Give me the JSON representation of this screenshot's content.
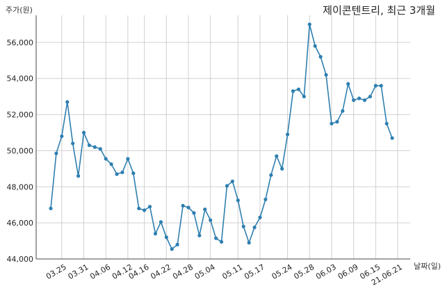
{
  "chart_data": {
    "type": "line",
    "title": "제이콘텐트리, 최근 3개월",
    "ylabel": "주가(원)",
    "xlabel": "날짜(일)",
    "ylim": [
      44000,
      57500
    ],
    "yticks": [
      44000,
      46000,
      48000,
      50000,
      52000,
      54000,
      56000
    ],
    "ytick_labels": [
      "44,000",
      "46,000",
      "48,000",
      "50,000",
      "52,000",
      "54,000",
      "56,000"
    ],
    "x_tick_labels": [
      "03.25",
      "03.31",
      "04.06",
      "04.12",
      "04.16",
      "04.22",
      "04.28",
      "05.04",
      "05.11",
      "05.17",
      "05.24",
      "05.28",
      "06.03",
      "06.09",
      "06.15",
      "21.06.21"
    ],
    "x_tick_indices": [
      2,
      6,
      10,
      14,
      17,
      21,
      25,
      29,
      34,
      38,
      43,
      47,
      51,
      55,
      59,
      63
    ],
    "grid": true,
    "line_color": "#2e7fb0",
    "series": [
      {
        "values": [
          46800,
          49850,
          50800,
          52700,
          50400,
          48600,
          51000,
          50300,
          50200,
          50100,
          49550,
          49250,
          48700,
          48800,
          49550,
          48750,
          46800,
          46700,
          46900,
          45400,
          46050,
          45200,
          44550,
          44800,
          46950,
          46850,
          46550,
          45300,
          46750,
          46150,
          45150,
          44950,
          48050,
          48300,
          47250,
          45800,
          44900,
          45750,
          46300,
          47300,
          48650,
          49700,
          49000,
          50900,
          53300,
          53400,
          53000,
          57000,
          55800,
          55200,
          54200,
          51500,
          51600,
          52200,
          53700,
          52800,
          52900,
          52800,
          53000,
          53600,
          53600,
          51500,
          50700
        ]
      }
    ]
  }
}
